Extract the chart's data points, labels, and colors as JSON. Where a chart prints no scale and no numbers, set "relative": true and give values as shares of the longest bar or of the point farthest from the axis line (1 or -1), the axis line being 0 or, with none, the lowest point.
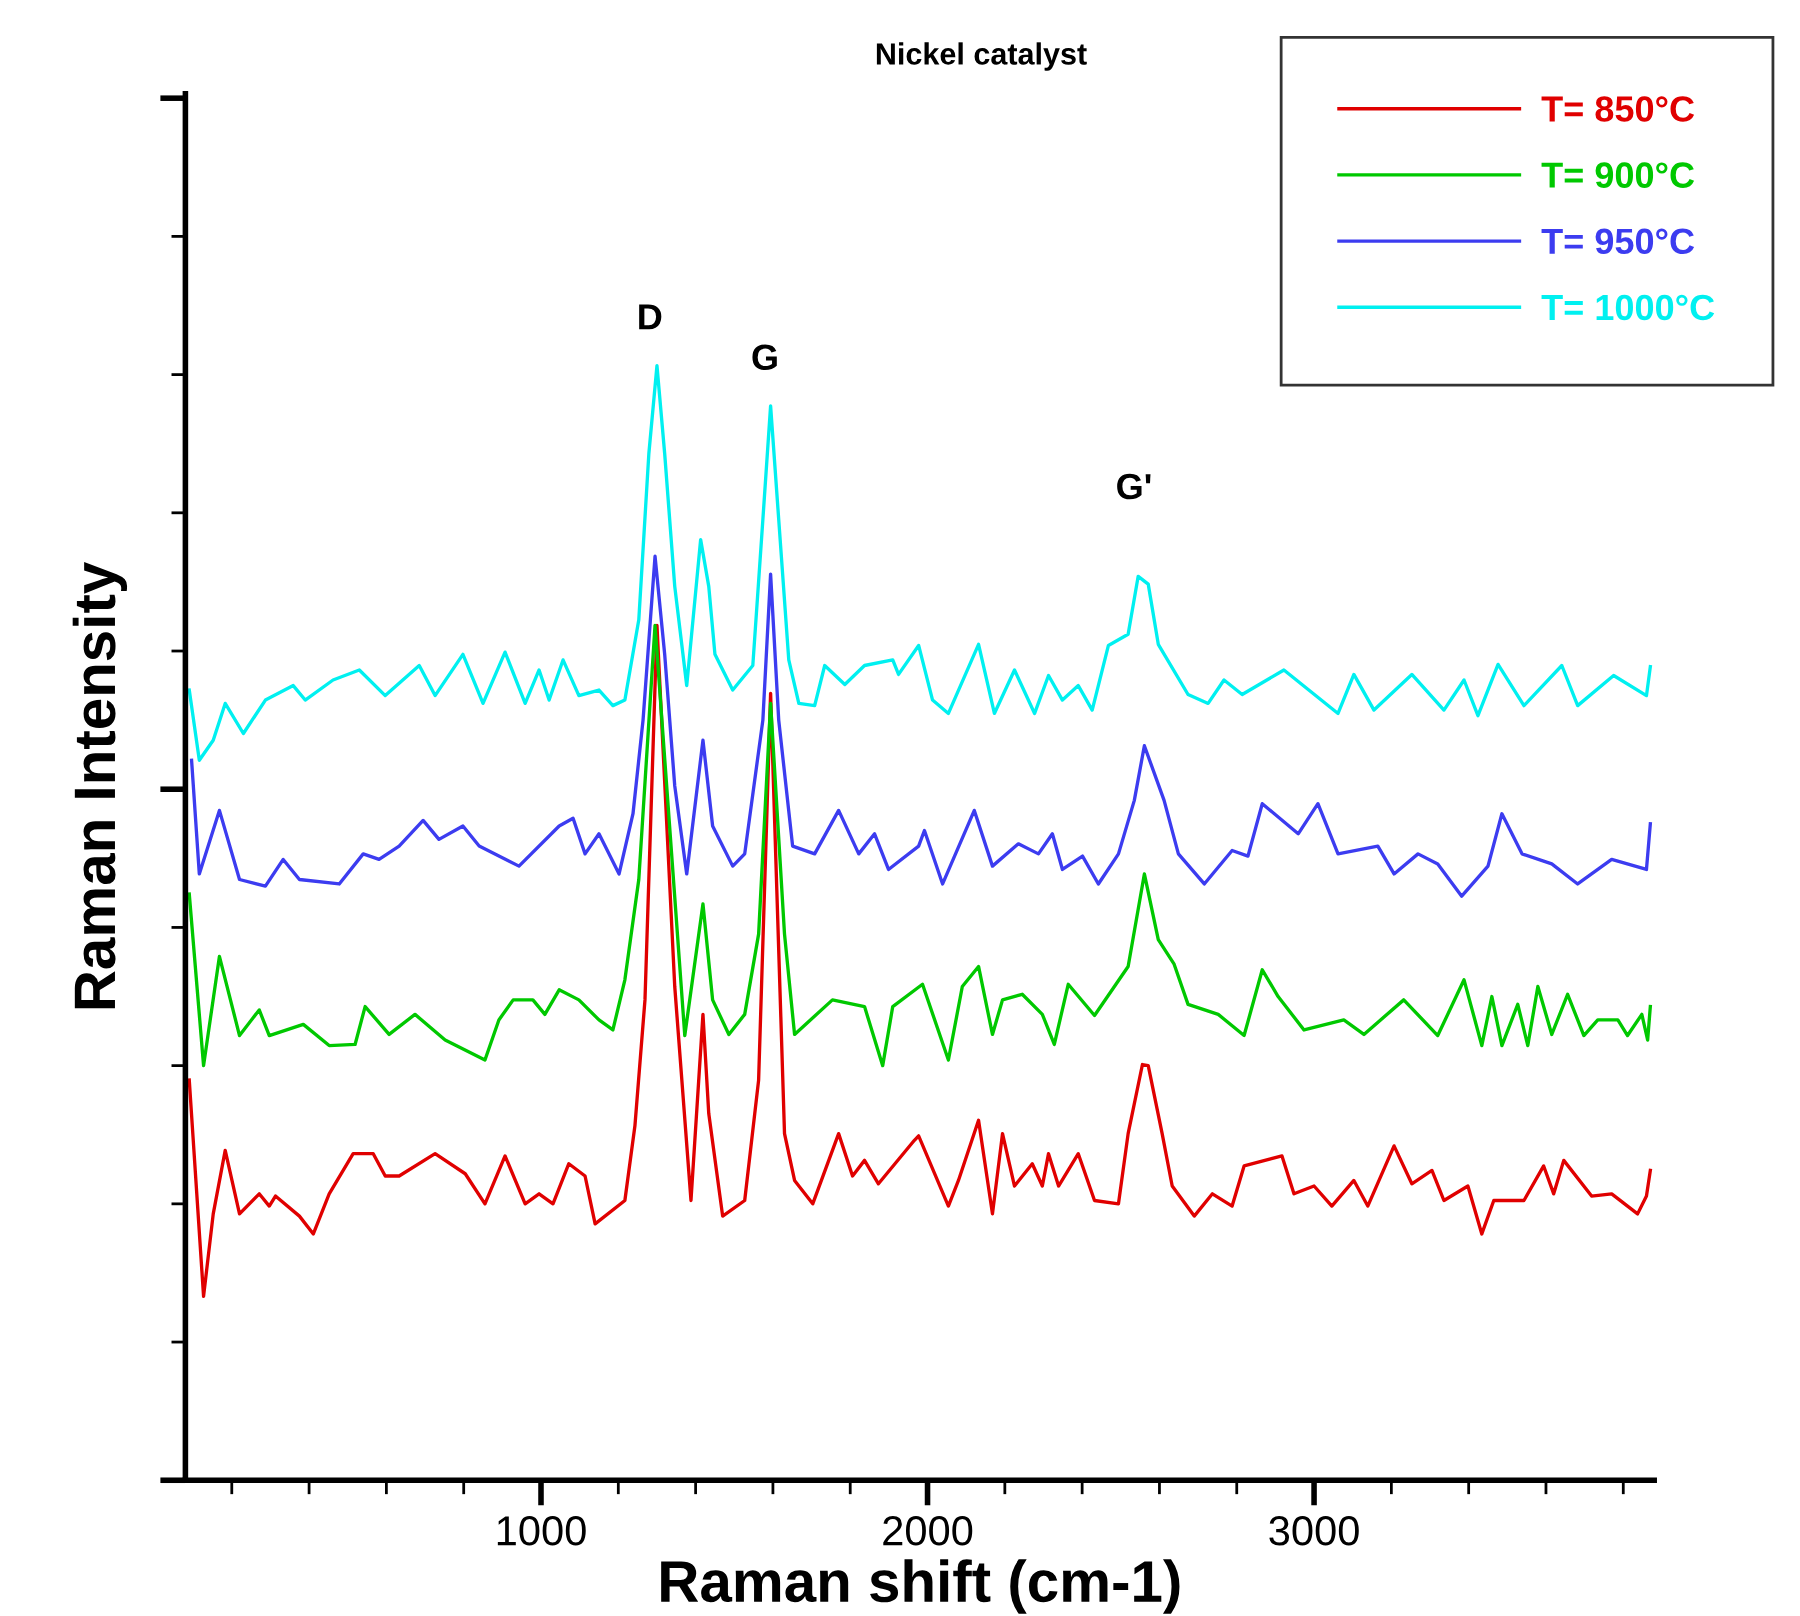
{
  "chart_data": {
    "type": "line",
    "title": "Nickel catalyst",
    "xlabel": "Raman shift (cm-1)",
    "ylabel": "Raman Intensity",
    "relative": true,
    "xlim": [
      80,
      3880
    ],
    "xticks": [
      1000,
      2000,
      3000
    ],
    "grid": false,
    "legend": "top right",
    "marker": "none",
    "line_style": "solid",
    "annotations": [
      "D",
      "G",
      "G'"
    ],
    "series": [
      {
        "name": "T= 850°C",
        "color": "#e00000",
        "x": [
          90,
          127,
          152,
          183,
          220,
          271,
          297,
          313,
          375,
          411,
          452,
          514,
          566,
          597,
          633,
          726,
          804,
          855,
          907,
          959,
          995,
          1031,
          1072,
          1114,
          1140,
          1217,
          1243,
          1269,
          1300,
          1346,
          1388,
          1419,
          1434,
          1470,
          1527,
          1563,
          1594,
          1630,
          1656,
          1703,
          1770,
          1806,
          1837,
          1873,
          1966,
          1977,
          2054,
          2080,
          2132,
          2168,
          2194,
          2225,
          2271,
          2297,
          2313,
          2339,
          2390,
          2432,
          2494,
          2519,
          2556,
          2571,
          2607,
          2633,
          2690,
          2737,
          2788,
          2819,
          2917,
          2948,
          3000,
          3046,
          3103,
          3139,
          3207,
          3253,
          3305,
          3336,
          3398,
          3434,
          3465,
          3543,
          3594,
          3620,
          3646,
          3718,
          3770,
          3837,
          3860,
          3870
        ],
        "values": [
          0.359,
          0.165,
          0.239,
          0.296,
          0.239,
          0.257,
          0.246,
          0.255,
          0.237,
          0.221,
          0.257,
          0.293,
          0.293,
          0.273,
          0.273,
          0.293,
          0.275,
          0.248,
          0.291,
          0.248,
          0.257,
          0.248,
          0.284,
          0.273,
          0.23,
          0.251,
          0.318,
          0.431,
          0.767,
          0.443,
          0.251,
          0.418,
          0.329,
          0.237,
          0.251,
          0.359,
          0.706,
          0.311,
          0.269,
          0.248,
          0.311,
          0.273,
          0.287,
          0.266,
          0.305,
          0.309,
          0.246,
          0.269,
          0.323,
          0.239,
          0.311,
          0.264,
          0.284,
          0.264,
          0.293,
          0.264,
          0.293,
          0.251,
          0.248,
          0.311,
          0.373,
          0.372,
          0.311,
          0.264,
          0.237,
          0.257,
          0.246,
          0.282,
          0.291,
          0.257,
          0.264,
          0.246,
          0.269,
          0.246,
          0.3,
          0.266,
          0.278,
          0.251,
          0.264,
          0.221,
          0.251,
          0.251,
          0.282,
          0.257,
          0.287,
          0.255,
          0.257,
          0.239,
          0.255,
          0.278
        ]
      },
      {
        "name": "T= 900°C",
        "color": "#00c800",
        "x": [
          90,
          127,
          168,
          220,
          271,
          297,
          385,
          452,
          519,
          545,
          607,
          674,
          752,
          855,
          891,
          928,
          979,
          1010,
          1047,
          1098,
          1150,
          1186,
          1217,
          1253,
          1295,
          1372,
          1419,
          1444,
          1486,
          1527,
          1563,
          1594,
          1630,
          1656,
          1754,
          1837,
          1884,
          1910,
          1987,
          2054,
          2090,
          2132,
          2168,
          2194,
          2245,
          2297,
          2328,
          2364,
          2432,
          2519,
          2561,
          2597,
          2638,
          2674,
          2752,
          2819,
          2866,
          2907,
          2974,
          3077,
          3129,
          3232,
          3320,
          3388,
          3434,
          3460,
          3486,
          3527,
          3553,
          3579,
          3615,
          3656,
          3698,
          3734,
          3786,
          3811,
          3848,
          3863,
          3870
        ],
        "values": [
          0.526,
          0.372,
          0.47,
          0.399,
          0.422,
          0.399,
          0.409,
          0.39,
          0.391,
          0.425,
          0.4,
          0.418,
          0.395,
          0.377,
          0.413,
          0.431,
          0.431,
          0.418,
          0.44,
          0.431,
          0.413,
          0.404,
          0.449,
          0.539,
          0.767,
          0.399,
          0.517,
          0.431,
          0.4,
          0.418,
          0.49,
          0.697,
          0.49,
          0.4,
          0.431,
          0.425,
          0.372,
          0.425,
          0.445,
          0.377,
          0.443,
          0.461,
          0.4,
          0.431,
          0.436,
          0.418,
          0.391,
          0.445,
          0.417,
          0.461,
          0.544,
          0.485,
          0.463,
          0.427,
          0.418,
          0.399,
          0.458,
          0.434,
          0.404,
          0.413,
          0.4,
          0.431,
          0.399,
          0.449,
          0.39,
          0.434,
          0.39,
          0.427,
          0.39,
          0.443,
          0.4,
          0.436,
          0.399,
          0.413,
          0.413,
          0.399,
          0.418,
          0.395,
          0.425
        ]
      },
      {
        "name": "T= 950°C",
        "color": "#3c3cf0",
        "x": [
          96,
          116,
          168,
          220,
          287,
          333,
          375,
          478,
          540,
          581,
          633,
          695,
          736,
          798,
          840,
          943,
          1047,
          1083,
          1114,
          1150,
          1202,
          1238,
          1264,
          1295,
          1320,
          1346,
          1377,
          1419,
          1444,
          1496,
          1527,
          1574,
          1594,
          1615,
          1651,
          1708,
          1770,
          1822,
          1863,
          1899,
          1977,
          1992,
          2039,
          2121,
          2168,
          2235,
          2287,
          2323,
          2349,
          2401,
          2442,
          2494,
          2535,
          2561,
          2612,
          2649,
          2716,
          2788,
          2829,
          2866,
          2959,
          3010,
          3062,
          3165,
          3207,
          3269,
          3320,
          3382,
          3450,
          3486,
          3538,
          3615,
          3682,
          3770,
          3860,
          3870
        ],
        "values": [
          0.646,
          0.544,
          0.601,
          0.539,
          0.533,
          0.557,
          0.539,
          0.535,
          0.562,
          0.557,
          0.569,
          0.592,
          0.575,
          0.587,
          0.569,
          0.551,
          0.587,
          0.594,
          0.562,
          0.58,
          0.544,
          0.598,
          0.682,
          0.829,
          0.741,
          0.623,
          0.544,
          0.664,
          0.587,
          0.551,
          0.562,
          0.682,
          0.813,
          0.682,
          0.569,
          0.562,
          0.601,
          0.562,
          0.58,
          0.548,
          0.569,
          0.583,
          0.535,
          0.601,
          0.551,
          0.571,
          0.562,
          0.58,
          0.548,
          0.56,
          0.535,
          0.562,
          0.61,
          0.659,
          0.61,
          0.562,
          0.535,
          0.565,
          0.56,
          0.607,
          0.58,
          0.607,
          0.562,
          0.569,
          0.544,
          0.562,
          0.553,
          0.524,
          0.551,
          0.598,
          0.562,
          0.553,
          0.535,
          0.557,
          0.548,
          0.589
        ]
      },
      {
        "name": "T= 1000°C",
        "color": "#00f0f0",
        "x": [
          90,
          116,
          152,
          183,
          230,
          287,
          359,
          390,
          462,
          530,
          597,
          685,
          726,
          798,
          850,
          907,
          959,
          995,
          1021,
          1057,
          1098,
          1150,
          1186,
          1217,
          1253,
          1279,
          1300,
          1320,
          1346,
          1377,
          1413,
          1434,
          1450,
          1496,
          1548,
          1574,
          1594,
          1615,
          1641,
          1667,
          1708,
          1734,
          1786,
          1837,
          1910,
          1925,
          1977,
          2013,
          2054,
          2132,
          2173,
          2225,
          2277,
          2313,
          2349,
          2390,
          2426,
          2468,
          2519,
          2545,
          2571,
          2597,
          2674,
          2726,
          2767,
          2814,
          2922,
          3062,
          3103,
          3155,
          3253,
          3336,
          3388,
          3424,
          3476,
          3543,
          3641,
          3682,
          3775,
          3860,
          3870
        ],
        "values": [
          0.709,
          0.646,
          0.664,
          0.697,
          0.67,
          0.7,
          0.713,
          0.7,
          0.718,
          0.727,
          0.704,
          0.731,
          0.704,
          0.741,
          0.697,
          0.743,
          0.697,
          0.727,
          0.7,
          0.736,
          0.704,
          0.709,
          0.695,
          0.7,
          0.772,
          0.921,
          1,
          0.921,
          0.802,
          0.713,
          0.844,
          0.802,
          0.741,
          0.709,
          0.731,
          0.862,
          0.964,
          0.862,
          0.736,
          0.697,
          0.695,
          0.731,
          0.714,
          0.731,
          0.736,
          0.723,
          0.749,
          0.7,
          0.688,
          0.75,
          0.688,
          0.727,
          0.688,
          0.722,
          0.7,
          0.713,
          0.691,
          0.749,
          0.759,
          0.811,
          0.804,
          0.75,
          0.705,
          0.697,
          0.718,
          0.705,
          0.727,
          0.688,
          0.723,
          0.691,
          0.723,
          0.691,
          0.718,
          0.686,
          0.732,
          0.695,
          0.731,
          0.695,
          0.722,
          0.704,
          0.73
        ]
      }
    ]
  }
}
